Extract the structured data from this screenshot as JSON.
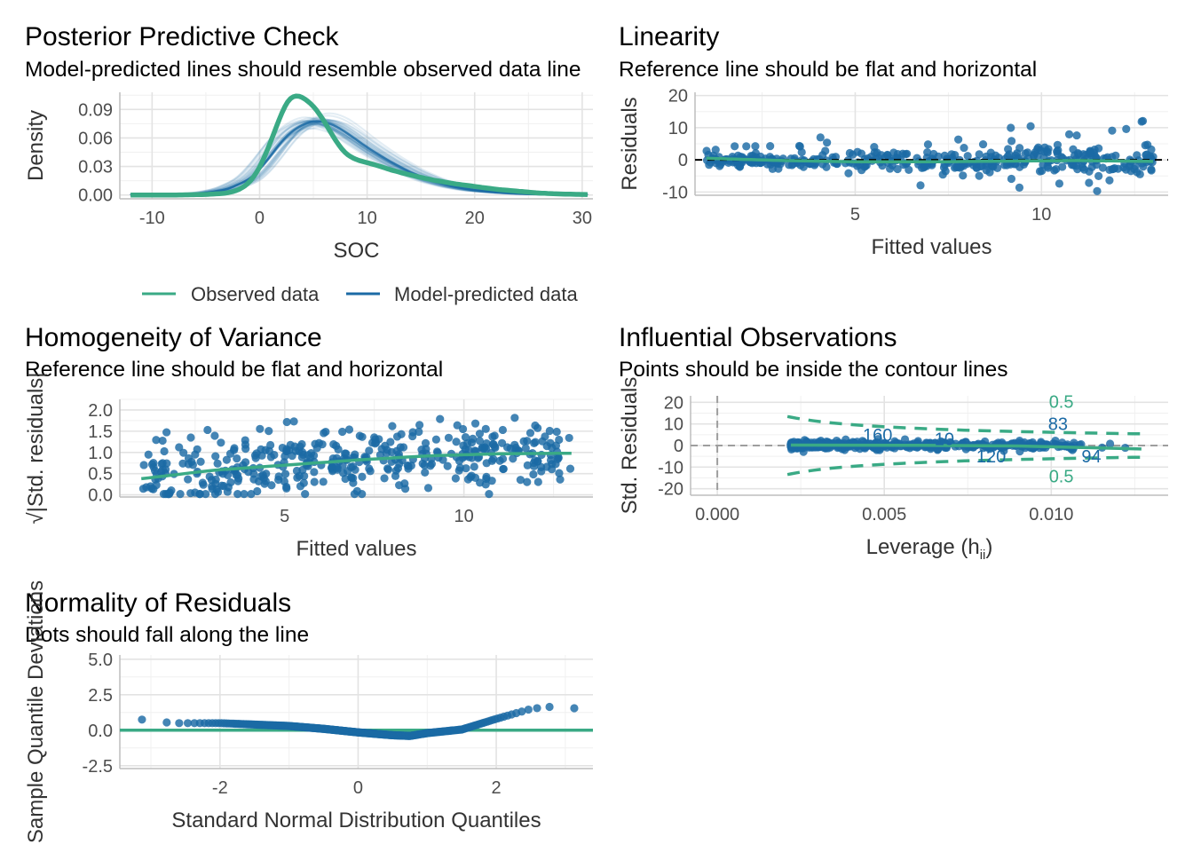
{
  "colors": {
    "observed": "#3aaa85",
    "predicted": "#1b6aa5",
    "reference": "#000000",
    "contour": "#3aaa85"
  },
  "chart_data": [
    {
      "id": "ppc",
      "type": "line",
      "title": "Posterior Predictive Check",
      "subtitle": "Model-predicted lines should resemble observed data line",
      "xlabel": "SOC",
      "ylabel": "Density",
      "xlim": [
        -13,
        31
      ],
      "ylim": [
        -0.004,
        0.108
      ],
      "xticks": [
        -10,
        0,
        10,
        20,
        30
      ],
      "xtick_labels": [
        "-10",
        "0",
        "10",
        "20",
        "30"
      ],
      "yticks": [
        0,
        0.03,
        0.06,
        0.09
      ],
      "ytick_labels": [
        "0.00",
        "0.03",
        "0.06",
        "0.09"
      ],
      "legend": {
        "position": "bottom",
        "items": [
          "Observed data",
          "Model-predicted data"
        ]
      },
      "series": [
        {
          "name": "Observed data",
          "x": [
            -12,
            -8,
            -5,
            -3,
            -2,
            -1,
            0,
            1,
            2,
            2.5,
            3,
            3.5,
            4,
            5,
            6,
            7,
            8,
            9,
            10,
            11,
            12,
            14,
            16,
            18,
            20,
            22,
            24,
            26,
            28,
            30.5
          ],
          "values": [
            0,
            0,
            0.0005,
            0.002,
            0.005,
            0.012,
            0.028,
            0.055,
            0.085,
            0.098,
            0.104,
            0.105,
            0.103,
            0.094,
            0.078,
            0.058,
            0.043,
            0.037,
            0.034,
            0.031,
            0.027,
            0.021,
            0.016,
            0.012,
            0.009,
            0.006,
            0.004,
            0.002,
            0.001,
            0.0005
          ]
        },
        {
          "name": "Model-predicted data",
          "x": [
            -12,
            -8,
            -5,
            -3,
            -1,
            0,
            1,
            2,
            3,
            4,
            5,
            6,
            7,
            8,
            10,
            12,
            14,
            16,
            18,
            20,
            22,
            24,
            26,
            28,
            30.5
          ],
          "values": [
            0,
            0.0005,
            0.002,
            0.006,
            0.016,
            0.027,
            0.041,
            0.056,
            0.067,
            0.074,
            0.078,
            0.077,
            0.073,
            0.066,
            0.05,
            0.036,
            0.024,
            0.015,
            0.009,
            0.005,
            0.003,
            0.0015,
            0.0007,
            0.0003,
            0.0001
          ]
        }
      ]
    },
    {
      "id": "linearity",
      "type": "scatter",
      "title": "Linearity",
      "subtitle": "Reference line should be flat and horizontal",
      "xlabel": "Fitted values",
      "ylabel": "Residuals",
      "xlim": [
        0.7,
        13.4
      ],
      "ylim": [
        -11,
        21
      ],
      "xticks": [
        5,
        10
      ],
      "xtick_labels": [
        "5",
        "10"
      ],
      "yticks": [
        -10,
        0,
        10,
        20
      ],
      "ytick_labels": [
        "-10",
        "0",
        "10",
        "20"
      ],
      "reference_line_y": 0,
      "smooth": {
        "x": [
          1,
          3,
          5,
          7,
          9,
          11,
          13
        ],
        "values": [
          0.5,
          -0.2,
          -0.6,
          -0.6,
          -0.4,
          -0.2,
          -0.5
        ]
      },
      "n_points": 420,
      "spread_profile": {
        "x": [
          1,
          4,
          7,
          10,
          13
        ],
        "residual_sd": [
          1.5,
          3,
          4.5,
          5.5,
          6
        ]
      }
    },
    {
      "id": "homogeneity",
      "type": "scatter",
      "title": "Homogeneity of Variance",
      "subtitle": "Reference line should be flat and horizontal",
      "xlabel": "Fitted values",
      "ylabel": "√|Std. residuals|",
      "xlim": [
        0.4,
        13.6
      ],
      "ylim": [
        -0.05,
        2.25
      ],
      "xticks": [
        5,
        10
      ],
      "xtick_labels": [
        "5",
        "10"
      ],
      "yticks": [
        0,
        0.5,
        1,
        1.5,
        2
      ],
      "ytick_labels": [
        "0.0",
        "0.5",
        "1.0",
        "1.5",
        "2.0"
      ],
      "smooth": {
        "x": [
          1,
          3,
          5,
          7,
          9,
          11,
          13
        ],
        "values": [
          0.38,
          0.58,
          0.7,
          0.82,
          0.92,
          0.97,
          0.98
        ]
      },
      "n_points": 420
    },
    {
      "id": "influential",
      "type": "scatter",
      "title": "Influential Observations",
      "subtitle": "Points should be inside the contour lines",
      "xlabel": "Leverage (h",
      "xlabel_sub": "ii",
      "xlabel_tail": ")",
      "ylabel": "Std. Residuals",
      "xlim": [
        -0.0008,
        0.0135
      ],
      "ylim": [
        -23,
        23
      ],
      "xticks": [
        0,
        0.005,
        0.01
      ],
      "xtick_labels": [
        "0.000",
        "0.005",
        "0.010"
      ],
      "yticks": [
        -20,
        -10,
        0,
        10,
        20
      ],
      "ytick_labels": [
        "-20",
        "-10",
        "0",
        "10",
        "20"
      ],
      "contour_level": "0.5",
      "contour_labels": [
        "0.5",
        "0.5"
      ],
      "contour_x_range": [
        0.0021,
        0.0127
      ],
      "point_labels": [
        {
          "text": "160",
          "x": 0.0048,
          "y": 5
        },
        {
          "text": "10",
          "x": 0.0068,
          "y": 3
        },
        {
          "text": "120",
          "x": 0.0082,
          "y": -5
        },
        {
          "text": "83",
          "x": 0.0102,
          "y": 10
        },
        {
          "text": "94",
          "x": 0.0112,
          "y": -5
        }
      ],
      "n_points": 420
    },
    {
      "id": "normality",
      "type": "scatter",
      "title": "Normality of Residuals",
      "subtitle": "Dots should fall along the line",
      "xlabel": "Standard Normal Distribution Quantiles",
      "ylabel": "Sample Quantile Deviations",
      "xlim": [
        -3.45,
        3.4
      ],
      "ylim": [
        -2.7,
        5.3
      ],
      "xticks": [
        -2,
        0,
        2
      ],
      "xtick_labels": [
        "-2",
        "0",
        "2"
      ],
      "yticks": [
        -2.5,
        0,
        2.5,
        5
      ],
      "ytick_labels": [
        "-2.5",
        "0.0",
        "2.5",
        "5.0"
      ],
      "reference_line_y": 0,
      "deviation_profile": {
        "x": [
          -3.05,
          -2.7,
          -2,
          -1,
          -0.5,
          0,
          0.5,
          0.75,
          1,
          1.5,
          2,
          2.5,
          2.75,
          3.05
        ],
        "values": [
          0.75,
          0.5,
          0.5,
          0.3,
          0.1,
          -0.15,
          -0.35,
          -0.4,
          -0.2,
          0.05,
          0.8,
          1.5,
          1.65,
          1.55
        ]
      },
      "n_points": 420
    }
  ]
}
